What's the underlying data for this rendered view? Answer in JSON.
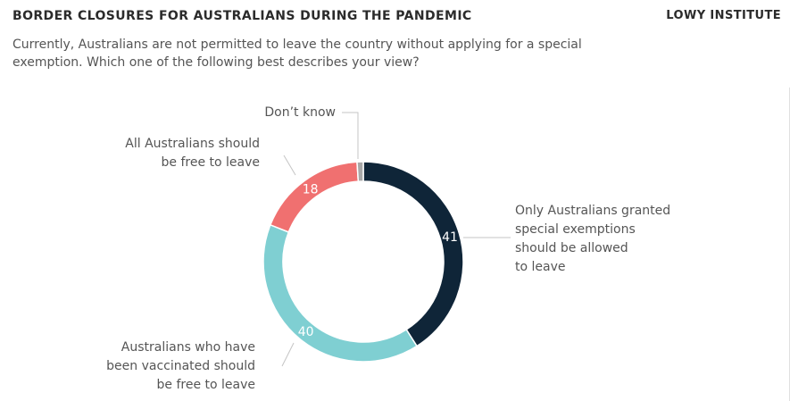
{
  "title": "BORDER CLOSURES FOR AUSTRALIANS DURING THE PANDEMIC",
  "brand": "LOWY INSTITUTE",
  "subtitle": "Currently, Australians are not permitted to leave the country without applying for a special exemption. Which one of the following best describes your view?",
  "chart_data": {
    "type": "pie",
    "variant": "donut",
    "slices": [
      {
        "name": "Only Australians granted special exemptions should be allowed to leave",
        "label_lines": [
          "Only Australians granted",
          "special exemptions",
          "should be allowed",
          "to leave"
        ],
        "value": 41,
        "value_label": "41",
        "color": "#0f2538"
      },
      {
        "name": "Australians who have been vaccinated should be free to leave",
        "label_lines": [
          "Australians who have",
          "been vaccinated should",
          "be free to leave"
        ],
        "value": 40,
        "value_label": "40",
        "color": "#7fcfd2"
      },
      {
        "name": "All Australians should be free to leave",
        "label_lines": [
          "All Australians should",
          "be free to leave"
        ],
        "value": 18,
        "value_label": "18",
        "color": "#f07070"
      },
      {
        "name": "Don't know",
        "label_lines": [
          "Don’t know"
        ],
        "value": 1,
        "value_label": "",
        "color": "#a8a8a8"
      }
    ]
  }
}
